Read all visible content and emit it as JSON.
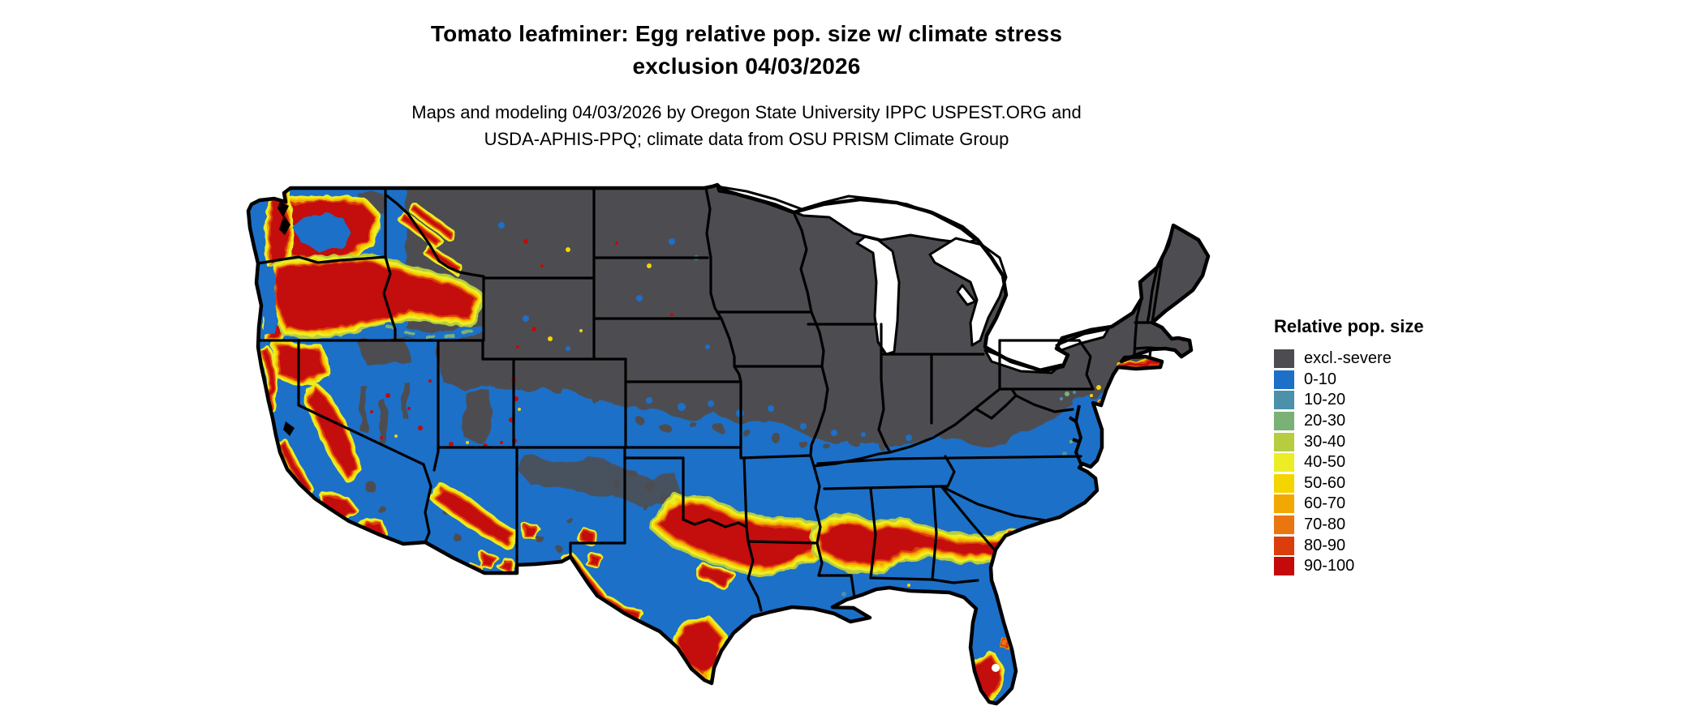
{
  "title": {
    "line1": "Tomato leafminer: Egg relative pop. size w/ climate stress",
    "line2": "exclusion 04/03/2026"
  },
  "subtitle": {
    "line1": "Maps and modeling 04/03/2026 by Oregon State University IPPC USPEST.ORG and",
    "line2": "USDA-APHIS-PPQ; climate data from OSU PRISM Climate Group"
  },
  "legend": {
    "title": "Relative pop. size",
    "items": [
      {
        "label": "excl.-severe",
        "color": "#4d4d51"
      },
      {
        "label": "0-10",
        "color": "#1c70c8"
      },
      {
        "label": "10-20",
        "color": "#4d90a9"
      },
      {
        "label": "20-30",
        "color": "#7ab175"
      },
      {
        "label": "30-40",
        "color": "#b8cc40"
      },
      {
        "label": "40-50",
        "color": "#eded26"
      },
      {
        "label": "50-60",
        "color": "#f5d500"
      },
      {
        "label": "60-70",
        "color": "#f2a802"
      },
      {
        "label": "70-80",
        "color": "#ea7612"
      },
      {
        "label": "80-90",
        "color": "#db3d0c"
      },
      {
        "label": "90-100",
        "color": "#c40a0a"
      }
    ]
  },
  "map": {
    "background_color": "#ffffff",
    "border_color": "#000000",
    "water_color": "#ffffff",
    "excluded_fill": "#4d4d51",
    "suitable_fill": "#1c70c8",
    "description": "Contiguous US map: northern states excluded (dark gray), southern/western lowlands 0-10 (blue), high relative pop. (red 90-100 with yellow-orange fringes) over Pacific Northwest mountains, California ranges, Arizona rim, north-central Texas / Red River, a band across Louisiana-Mississippi-Alabama-Georgia, south Texas, and south Florida."
  }
}
